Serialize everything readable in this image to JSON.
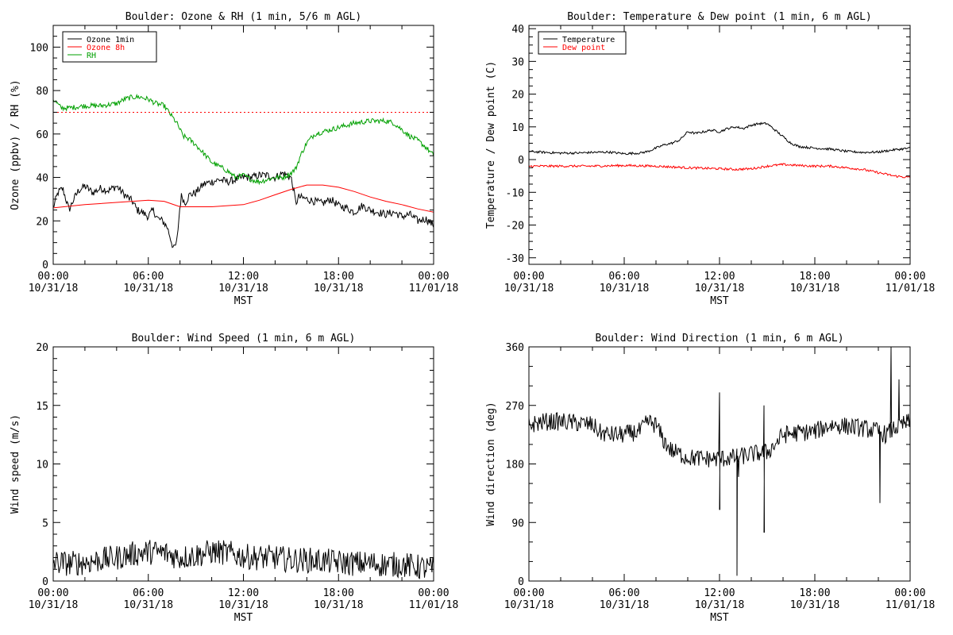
{
  "chart_data": [
    {
      "type": "line",
      "title": "Boulder: Ozone & RH (1 min, 5/6 m AGL)",
      "xlabel": "MST",
      "ylabel": "Ozone (ppbv) / RH (%)",
      "xlim": [
        0,
        24
      ],
      "ylim": [
        0,
        110
      ],
      "xticks": [
        0,
        6,
        12,
        18,
        24
      ],
      "xtick_labels": [
        [
          "00:00",
          "10/31/18"
        ],
        [
          "06:00",
          "10/31/18"
        ],
        [
          "12:00",
          "10/31/18"
        ],
        [
          "18:00",
          "10/31/18"
        ],
        [
          "00:00",
          "11/01/18"
        ]
      ],
      "yticks": [
        0,
        20,
        40,
        60,
        80,
        100
      ],
      "legend_position": "top-left",
      "series": [
        {
          "name": "Ozone 1min",
          "color": "#000000",
          "noise": 1.8,
          "x": [
            0,
            0.3,
            0.6,
            0.8,
            1.0,
            1.3,
            1.6,
            2.0,
            2.5,
            3.0,
            3.5,
            4.0,
            4.5,
            5.0,
            5.3,
            5.6,
            6.0,
            6.3,
            6.6,
            6.9,
            7.2,
            7.4,
            7.6,
            7.8,
            8.0,
            8.1,
            8.3,
            8.6,
            9.0,
            9.5,
            10.0,
            10.5,
            11.0,
            11.5,
            12.0,
            12.5,
            13.0,
            13.5,
            14.0,
            14.5,
            15.0,
            15.2,
            15.3,
            15.5,
            16.0,
            16.5,
            17.0,
            17.5,
            18.0,
            18.5,
            19.0,
            19.5,
            20.0,
            20.5,
            21.0,
            21.5,
            22.0,
            22.5,
            23.0,
            23.5,
            24.0
          ],
          "y": [
            26,
            33,
            35,
            30,
            25,
            30,
            34,
            36,
            33,
            35,
            34,
            36,
            32,
            29,
            25,
            24,
            22,
            25,
            21,
            20,
            17,
            12,
            7,
            10,
            27,
            32,
            28,
            32,
            33,
            37,
            38,
            39,
            38,
            39,
            40,
            40,
            41,
            41,
            40,
            42,
            40,
            33,
            28,
            31,
            30,
            29,
            28,
            30,
            27,
            26,
            24,
            27,
            25,
            24,
            23,
            24,
            22,
            23,
            20,
            21,
            18
          ]
        },
        {
          "name": "Ozone 8h",
          "color": "#ff0000",
          "noise": 0,
          "x": [
            0,
            2,
            4,
            6,
            7,
            8,
            10,
            12,
            13,
            14,
            15,
            16,
            17,
            18,
            19,
            20,
            21,
            22,
            23,
            24
          ],
          "y": [
            26,
            27.5,
            28.5,
            29.5,
            29,
            26.5,
            26.5,
            27.5,
            29.5,
            32,
            34.5,
            36.5,
            36.5,
            35.5,
            33.5,
            31,
            29,
            27.5,
            25.5,
            24
          ]
        },
        {
          "name": "RH",
          "color": "#00a000",
          "noise": 1.2,
          "x": [
            0,
            0.5,
            1,
            2,
            3,
            4,
            4.5,
            5,
            5.5,
            6,
            6.5,
            7,
            7.5,
            7.8,
            8.0,
            8.2,
            8.5,
            9,
            9.5,
            10,
            10.5,
            11,
            11.5,
            12,
            12.5,
            13,
            13.5,
            14,
            14.5,
            15,
            15.3,
            15.6,
            16,
            16.5,
            17,
            18,
            19,
            20,
            21,
            21.5,
            22,
            22.5,
            23,
            23.5,
            24
          ],
          "y": [
            76,
            72,
            72,
            73,
            73,
            74,
            76,
            77,
            77,
            76,
            74,
            73,
            68,
            65,
            62,
            59,
            58,
            55,
            51,
            47,
            45,
            43,
            40,
            41,
            39,
            38,
            39,
            40,
            40,
            42,
            44,
            50,
            56,
            60,
            61,
            63,
            65,
            66,
            66,
            65,
            62,
            59,
            57,
            54,
            50
          ]
        },
        {
          "name": "",
          "color": "#ff0000",
          "dotted": true,
          "noise": 0,
          "x": [
            0,
            24
          ],
          "y": [
            70,
            70
          ]
        }
      ]
    },
    {
      "type": "line",
      "title": "Boulder: Temperature & Dew point (1 min, 6 m AGL)",
      "xlabel": "MST",
      "ylabel": "Temperature / Dew point (C)",
      "xlim": [
        0,
        24
      ],
      "ylim": [
        -32,
        41
      ],
      "xticks": [
        0,
        6,
        12,
        18,
        24
      ],
      "xtick_labels": [
        [
          "00:00",
          "10/31/18"
        ],
        [
          "06:00",
          "10/31/18"
        ],
        [
          "12:00",
          "10/31/18"
        ],
        [
          "18:00",
          "10/31/18"
        ],
        [
          "00:00",
          "11/01/18"
        ]
      ],
      "yticks": [
        -30,
        -20,
        -10,
        0,
        10,
        20,
        30,
        40
      ],
      "legend_position": "top-left",
      "series": [
        {
          "name": "Temperature",
          "color": "#000000",
          "noise": 0.35,
          "x": [
            0,
            1,
            2,
            3,
            4,
            5,
            6,
            7,
            7.5,
            8,
            8.5,
            9,
            9.5,
            10,
            10.5,
            11,
            11.5,
            12,
            12.5,
            13,
            13.5,
            14,
            14.5,
            15,
            15.5,
            16,
            16.5,
            17,
            18,
            19,
            20,
            21,
            22,
            23,
            24
          ],
          "y": [
            2.5,
            2.2,
            2,
            2,
            2.2,
            2.3,
            1.8,
            2,
            2.5,
            3.5,
            4.5,
            5,
            6,
            8.5,
            8,
            8.5,
            9,
            8.5,
            9.5,
            10,
            9.5,
            10.5,
            11,
            11,
            9,
            7,
            5,
            4,
            3.5,
            3.2,
            2.5,
            2.2,
            2.3,
            3,
            3.5
          ]
        },
        {
          "name": "Dew point",
          "color": "#ff0000",
          "noise": 0.35,
          "x": [
            0,
            2,
            4,
            6,
            8,
            10,
            12,
            13,
            14,
            15,
            16,
            17,
            18,
            19,
            20,
            21,
            22,
            23,
            24
          ],
          "y": [
            -2,
            -2,
            -2,
            -1.8,
            -2,
            -2.5,
            -2.8,
            -3,
            -2.8,
            -2,
            -1.5,
            -1.8,
            -2,
            -2,
            -2.5,
            -3,
            -4,
            -5,
            -5.5
          ]
        }
      ]
    },
    {
      "type": "line",
      "title": "Boulder: Wind Speed (1 min, 6 m AGL)",
      "xlabel": "MST",
      "ylabel": "Wind speed (m/s)",
      "xlim": [
        0,
        24
      ],
      "ylim": [
        0,
        20
      ],
      "xticks": [
        0,
        6,
        12,
        18,
        24
      ],
      "xtick_labels": [
        [
          "00:00",
          "10/31/18"
        ],
        [
          "06:00",
          "10/31/18"
        ],
        [
          "12:00",
          "10/31/18"
        ],
        [
          "18:00",
          "10/31/18"
        ],
        [
          "00:00",
          "11/01/18"
        ]
      ],
      "yticks": [
        0,
        5,
        10,
        15,
        20
      ],
      "series": [
        {
          "name": "",
          "color": "#000000",
          "noise": 1.1,
          "x": [
            0,
            1,
            2,
            3,
            4,
            5,
            6,
            7,
            8,
            9,
            10,
            11,
            12,
            13,
            14,
            15,
            16,
            17,
            18,
            19,
            20,
            21,
            22,
            23,
            24
          ],
          "y": [
            1.6,
            1.5,
            1.6,
            1.8,
            2,
            2.3,
            2.5,
            2.4,
            2,
            2.2,
            2.5,
            2.4,
            2.1,
            2,
            2,
            1.8,
            1.8,
            1.7,
            1.6,
            1.5,
            1.5,
            1.4,
            1.4,
            1.2,
            1.0
          ]
        }
      ]
    },
    {
      "type": "line",
      "title": "Boulder: Wind Direction (1 min, 6 m AGL)",
      "xlabel": "MST",
      "ylabel": "Wind direction (deg)",
      "xlim": [
        0,
        24
      ],
      "ylim": [
        0,
        360
      ],
      "xticks": [
        0,
        6,
        12,
        18,
        24
      ],
      "xtick_labels": [
        [
          "00:00",
          "10/31/18"
        ],
        [
          "06:00",
          "10/31/18"
        ],
        [
          "12:00",
          "10/31/18"
        ],
        [
          "18:00",
          "10/31/18"
        ],
        [
          "00:00",
          "11/01/18"
        ]
      ],
      "yticks": [
        0,
        90,
        180,
        270,
        360
      ],
      "series": [
        {
          "name": "",
          "color": "#000000",
          "noise": 14,
          "x": [
            0,
            1,
            2,
            3,
            4,
            4.5,
            5,
            6,
            6.5,
            7,
            7.5,
            8,
            8.5,
            9,
            9.5,
            10,
            11,
            12,
            13,
            14,
            15,
            15.5,
            16,
            17,
            18,
            18.5,
            19,
            20,
            21,
            22,
            22.5,
            23,
            23.5,
            24
          ],
          "y": [
            240,
            245,
            245,
            243,
            240,
            228,
            225,
            225,
            228,
            230,
            245,
            240,
            215,
            200,
            195,
            190,
            188,
            188,
            190,
            195,
            198,
            210,
            225,
            228,
            230,
            235,
            240,
            238,
            235,
            230,
            225,
            235,
            240,
            245
          ]
        }
      ],
      "spikes": [
        [
          12.0,
          110
        ],
        [
          12.0,
          290
        ],
        [
          13.1,
          8
        ],
        [
          13.2,
          160
        ],
        [
          14.8,
          75
        ],
        [
          14.8,
          270
        ],
        [
          22.1,
          120
        ],
        [
          22.8,
          360
        ],
        [
          23.3,
          310
        ]
      ]
    }
  ]
}
